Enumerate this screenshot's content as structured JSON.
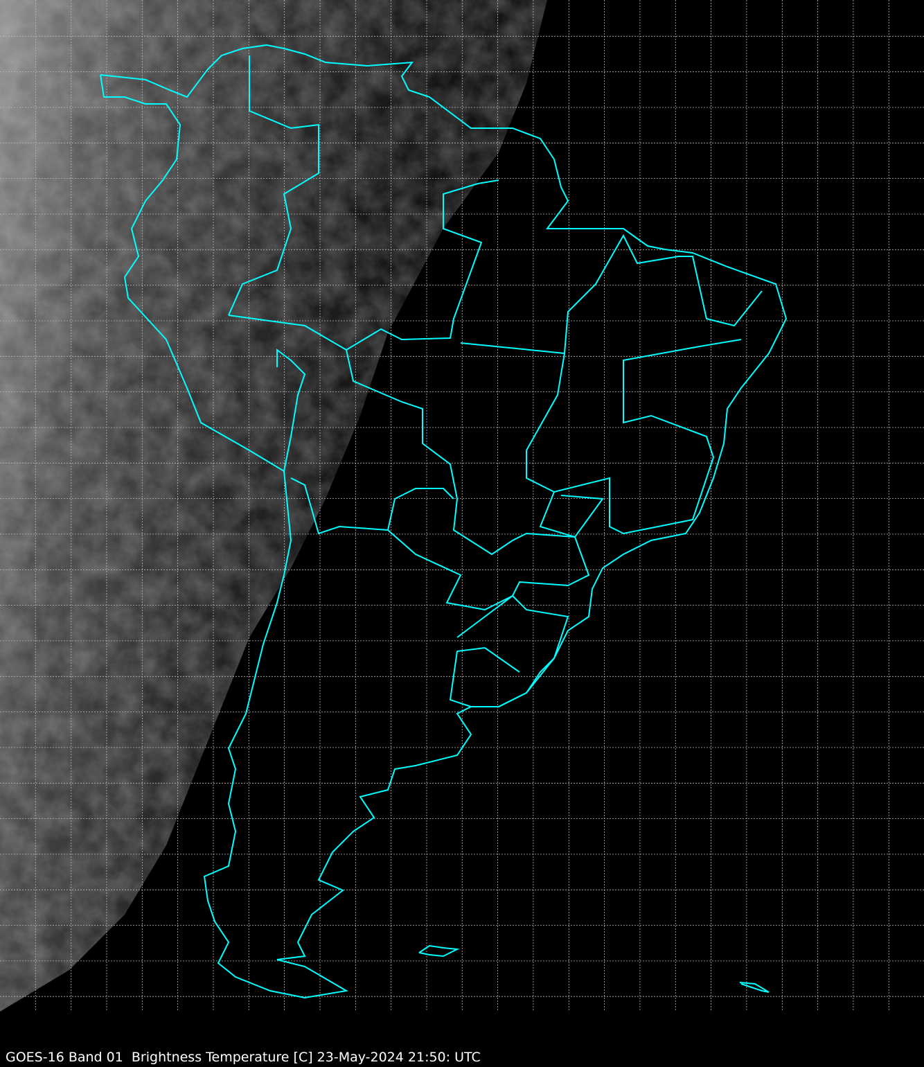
{
  "caption": "GOES-16 Band 01  Brightness Temperature [C] 23-May-2024 21:50: UTC",
  "map": {
    "region": "South America",
    "border_color": "#00ffff",
    "grid_color": "#bbbbbb",
    "background_color": "#000000"
  }
}
